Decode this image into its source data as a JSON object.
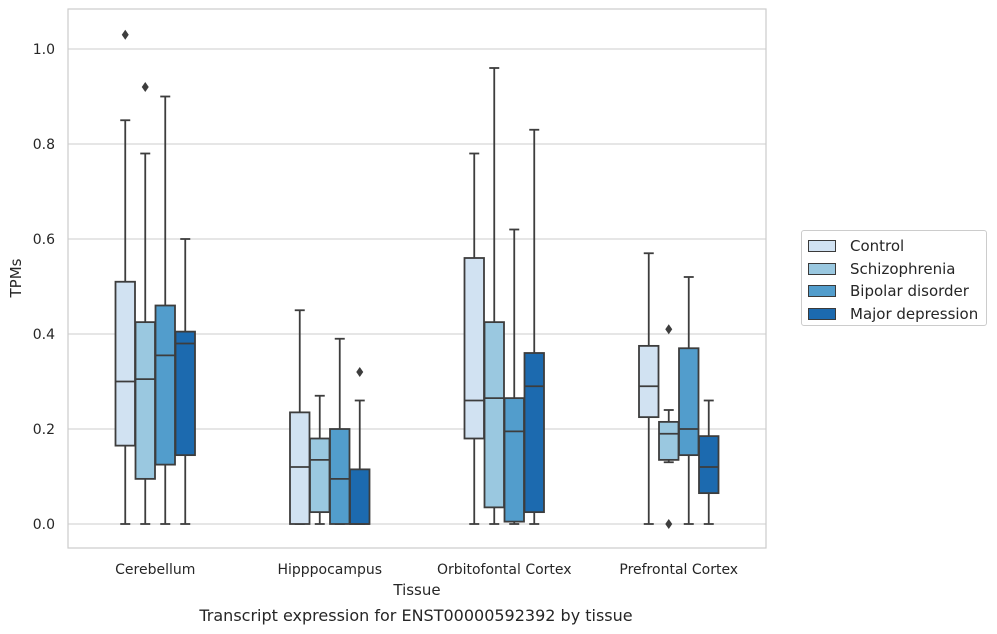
{
  "caption": "Transcript expression for ENST00000592392 by tissue",
  "legend": {
    "entries": [
      {
        "label": "Control",
        "color": "#d1e2f2"
      },
      {
        "label": "Schizophrenia",
        "color": "#9ac8e0"
      },
      {
        "label": "Bipolar disorder",
        "color": "#529dcc"
      },
      {
        "label": "Major depression",
        "color": "#1c6aaf"
      }
    ],
    "placement": "right, outside plot"
  },
  "chart_data": {
    "type": "box",
    "xlabel": "Tissue",
    "ylabel": "TPMs",
    "ylim": [
      -0.05,
      1.08
    ],
    "yticks": [
      "0.0",
      "0.2",
      "0.4",
      "0.6",
      "0.8",
      "1.0"
    ],
    "grid": "horizontal",
    "categories": [
      "Cerebellum",
      "Hipppocampus",
      "Orbitofontal Cortex",
      "Prefrontal Cortex"
    ],
    "series": [
      {
        "name": "Control",
        "color": "#d1e2f2",
        "boxes": [
          {
            "whislo": 0.0,
            "q1": 0.165,
            "med": 0.3,
            "q3": 0.51,
            "whishi": 0.85,
            "fliers": [
              1.03
            ]
          },
          {
            "whislo": 0.0,
            "q1": 0.0,
            "med": 0.12,
            "q3": 0.235,
            "whishi": 0.45,
            "fliers": []
          },
          {
            "whislo": 0.0,
            "q1": 0.18,
            "med": 0.26,
            "q3": 0.56,
            "whishi": 0.78,
            "fliers": []
          },
          {
            "whislo": 0.0,
            "q1": 0.225,
            "med": 0.29,
            "q3": 0.375,
            "whishi": 0.57,
            "fliers": []
          }
        ]
      },
      {
        "name": "Schizophrenia",
        "color": "#9ac8e0",
        "boxes": [
          {
            "whislo": 0.0,
            "q1": 0.095,
            "med": 0.305,
            "q3": 0.425,
            "whishi": 0.78,
            "fliers": [
              0.92
            ]
          },
          {
            "whislo": 0.0,
            "q1": 0.025,
            "med": 0.135,
            "q3": 0.18,
            "whishi": 0.27,
            "fliers": []
          },
          {
            "whislo": 0.0,
            "q1": 0.035,
            "med": 0.265,
            "q3": 0.425,
            "whishi": 0.96,
            "fliers": []
          },
          {
            "whislo": 0.13,
            "q1": 0.135,
            "med": 0.19,
            "q3": 0.215,
            "whishi": 0.24,
            "fliers": [
              0.41,
              0.0
            ]
          }
        ]
      },
      {
        "name": "Bipolar disorder",
        "color": "#529dcc",
        "boxes": [
          {
            "whislo": 0.0,
            "q1": 0.125,
            "med": 0.355,
            "q3": 0.46,
            "whishi": 0.9,
            "fliers": []
          },
          {
            "whislo": 0.0,
            "q1": 0.0,
            "med": 0.095,
            "q3": 0.2,
            "whishi": 0.39,
            "fliers": []
          },
          {
            "whislo": 0.0,
            "q1": 0.005,
            "med": 0.195,
            "q3": 0.265,
            "whishi": 0.62,
            "fliers": []
          },
          {
            "whislo": 0.0,
            "q1": 0.145,
            "med": 0.2,
            "q3": 0.37,
            "whishi": 0.52,
            "fliers": []
          }
        ]
      },
      {
        "name": "Major depression",
        "color": "#1c6aaf",
        "boxes": [
          {
            "whislo": 0.0,
            "q1": 0.145,
            "med": 0.38,
            "q3": 0.405,
            "whishi": 0.6,
            "fliers": []
          },
          {
            "whislo": 0.0,
            "q1": 0.0,
            "med": 0.0,
            "q3": 0.115,
            "whishi": 0.26,
            "fliers": [
              0.32
            ]
          },
          {
            "whislo": 0.0,
            "q1": 0.025,
            "med": 0.29,
            "q3": 0.36,
            "whishi": 0.83,
            "fliers": []
          },
          {
            "whislo": 0.0,
            "q1": 0.065,
            "med": 0.12,
            "q3": 0.185,
            "whishi": 0.26,
            "fliers": []
          }
        ]
      }
    ]
  }
}
